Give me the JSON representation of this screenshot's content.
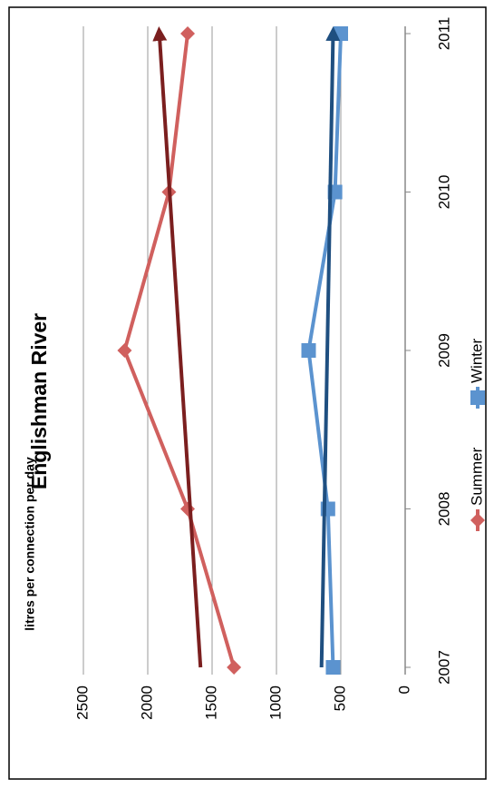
{
  "chart_data": {
    "type": "line",
    "title": "Englishman River",
    "y_label": "litres per connection per day",
    "categories": [
      "2007",
      "2008",
      "2009",
      "2010",
      "2011"
    ],
    "series": [
      {
        "name": "Summer",
        "color": "#d0605e",
        "marker": "diamond",
        "values": [
          1330,
          1690,
          2180,
          1835,
          1690
        ],
        "trend": [
          1590,
          1910
        ],
        "trend_color": "#7b1f1f"
      },
      {
        "name": "Winter",
        "color": "#5b93cf",
        "marker": "square",
        "values": [
          560,
          600,
          750,
          545,
          500
        ],
        "trend": [
          650,
          560
        ],
        "trend_color": "#1f4f80"
      }
    ],
    "ylim": [
      0,
      2500
    ],
    "yticks": [
      0,
      500,
      1000,
      1500,
      2000,
      2500
    ],
    "grid": true
  }
}
